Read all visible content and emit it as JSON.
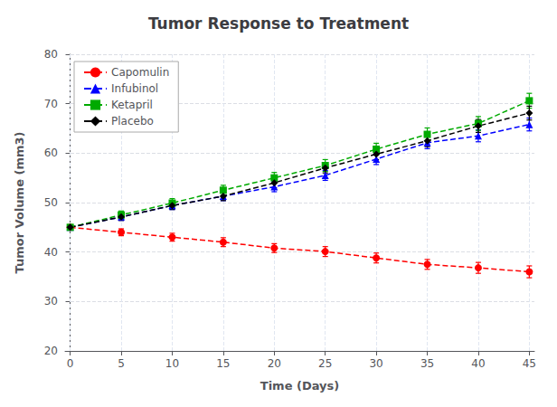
{
  "chart_data": {
    "type": "line",
    "title": "Tumor Response to Treatment",
    "x_label": "Time (Days)",
    "y_label": "Tumor Volume (mm3)",
    "x": [
      0,
      5,
      10,
      15,
      20,
      25,
      30,
      35,
      40,
      45
    ],
    "series": [
      {
        "name": "Capomulin",
        "color": "#ff0000",
        "marker": "circle",
        "line_style": "dashed",
        "values": [
          45.0,
          44.0,
          43.0,
          42.0,
          40.8,
          40.1,
          38.8,
          37.5,
          36.8,
          36.0
        ],
        "yerr": [
          0.0,
          0.7,
          0.8,
          0.9,
          0.9,
          1.0,
          1.0,
          1.0,
          1.1,
          1.2
        ]
      },
      {
        "name": "Infubinol",
        "color": "#0000ff",
        "marker": "triangle",
        "line_style": "dashed",
        "values": [
          45.0,
          47.1,
          49.4,
          51.3,
          53.2,
          55.5,
          58.8,
          62.1,
          63.5,
          65.8
        ],
        "yerr": [
          0.0,
          0.7,
          0.8,
          0.9,
          1.0,
          1.0,
          1.1,
          1.2,
          1.2,
          1.3
        ]
      },
      {
        "name": "Ketapril",
        "color": "#00aa00",
        "marker": "square",
        "line_style": "dashed",
        "values": [
          45.0,
          47.5,
          49.9,
          52.5,
          55.0,
          57.5,
          60.8,
          63.8,
          66.0,
          70.6
        ],
        "yerr": [
          0.0,
          0.8,
          0.9,
          1.0,
          1.1,
          1.2,
          1.2,
          1.3,
          1.4,
          1.5
        ]
      },
      {
        "name": "Placebo",
        "color": "#000000",
        "marker": "diamond",
        "line_style": "dashed",
        "values": [
          45.0,
          47.1,
          49.4,
          51.3,
          54.0,
          57.0,
          59.8,
          62.5,
          65.5,
          68.1
        ],
        "yerr": [
          0.0,
          0.7,
          0.8,
          0.9,
          1.0,
          1.0,
          1.1,
          1.2,
          1.3,
          1.4
        ]
      }
    ],
    "xlim": [
      -0.5,
      45.5
    ],
    "xticks": [
      0,
      5,
      10,
      15,
      20,
      25,
      30,
      35,
      40,
      45
    ],
    "ylim": [
      20,
      80
    ],
    "yticks": [
      20,
      30,
      40,
      50,
      60,
      70,
      80
    ],
    "grid": true,
    "legend": "upper left"
  }
}
